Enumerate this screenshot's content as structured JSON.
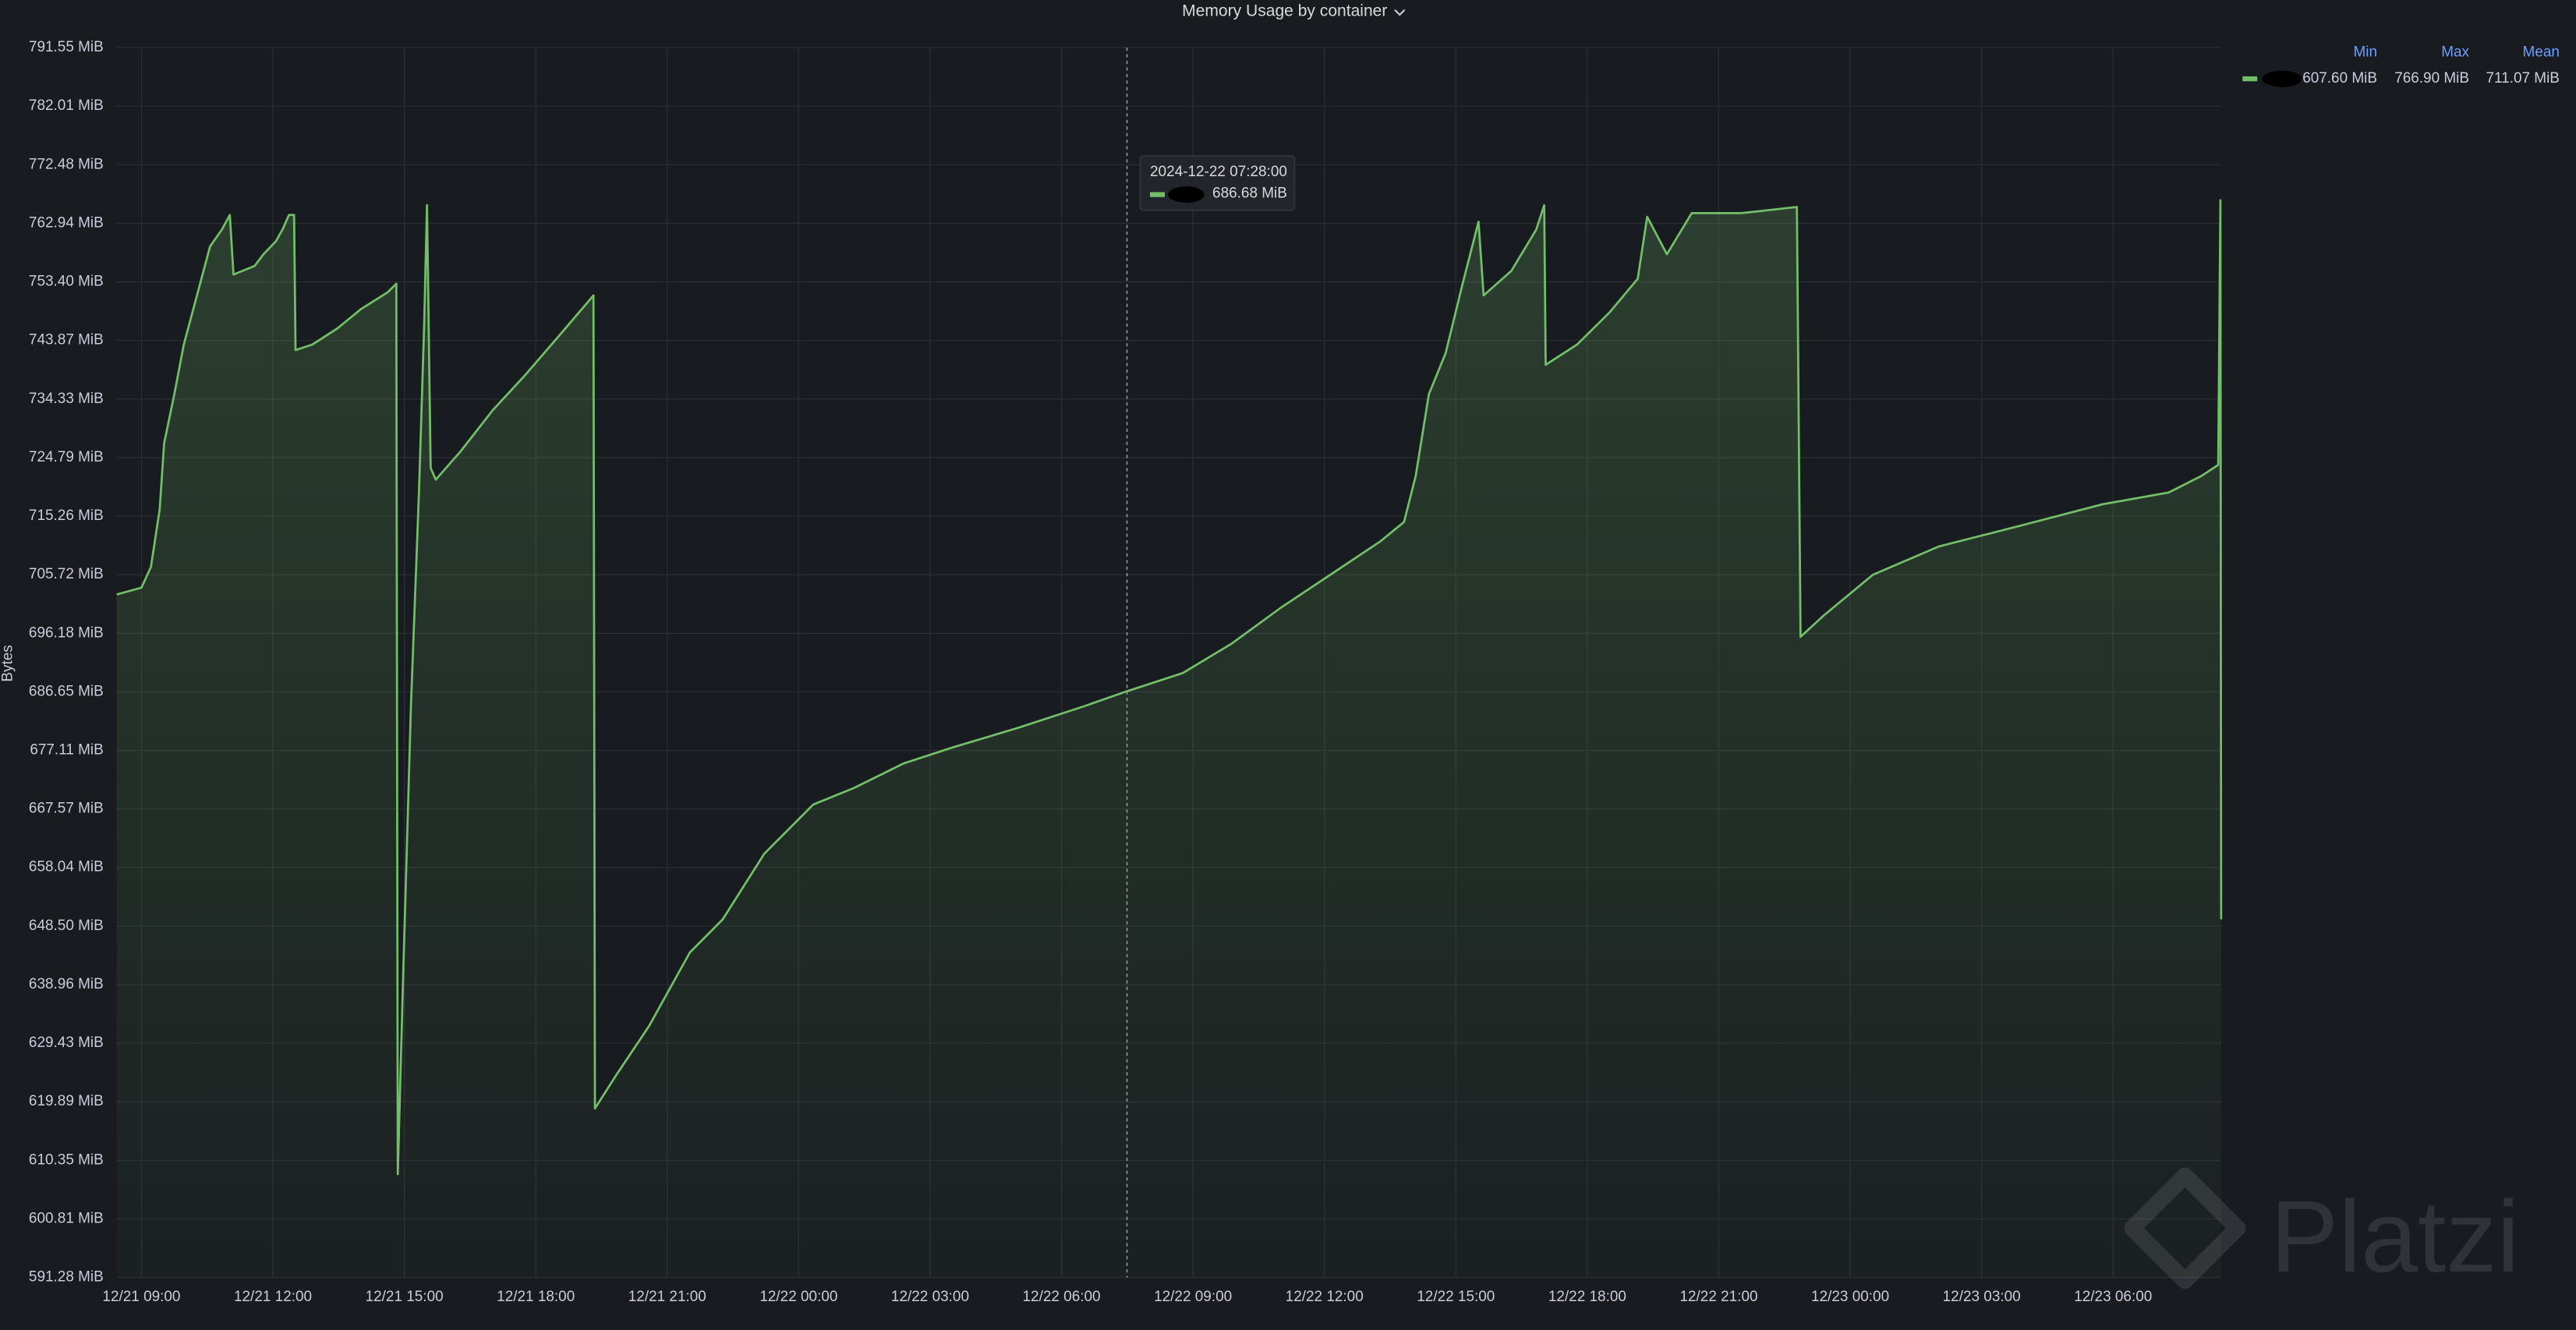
{
  "chart_data": {
    "type": "line",
    "title": "Memory Usage by container",
    "ylabel": "Bytes",
    "ylim": [
      591.28,
      791.55
    ],
    "yticks": [
      {
        "value": 591.28,
        "label": "591.28 MiB"
      },
      {
        "value": 600.81,
        "label": "600.81 MiB"
      },
      {
        "value": 610.35,
        "label": "610.35 MiB"
      },
      {
        "value": 619.89,
        "label": "619.89 MiB"
      },
      {
        "value": 629.43,
        "label": "629.43 MiB"
      },
      {
        "value": 638.96,
        "label": "638.96 MiB"
      },
      {
        "value": 648.5,
        "label": "648.50 MiB"
      },
      {
        "value": 658.04,
        "label": "658.04 MiB"
      },
      {
        "value": 667.57,
        "label": "667.57 MiB"
      },
      {
        "value": 677.11,
        "label": "677.11 MiB"
      },
      {
        "value": 686.65,
        "label": "686.65 MiB"
      },
      {
        "value": 696.18,
        "label": "696.18 MiB"
      },
      {
        "value": 705.72,
        "label": "705.72 MiB"
      },
      {
        "value": 715.26,
        "label": "715.26 MiB"
      },
      {
        "value": 724.79,
        "label": "724.79 MiB"
      },
      {
        "value": 734.33,
        "label": "734.33 MiB"
      },
      {
        "value": 743.87,
        "label": "743.87 MiB"
      },
      {
        "value": 753.4,
        "label": "753.40 MiB"
      },
      {
        "value": 762.94,
        "label": "762.94 MiB"
      },
      {
        "value": 772.48,
        "label": "772.48 MiB"
      },
      {
        "value": 782.01,
        "label": "782.01 MiB"
      },
      {
        "value": 791.55,
        "label": "791.55 MiB"
      }
    ],
    "xlim": [
      "12/21 08:26",
      "12/23 08:28"
    ],
    "xticks": [
      "12/21 09:00",
      "12/21 12:00",
      "12/21 15:00",
      "12/21 18:00",
      "12/21 21:00",
      "12/22 00:00",
      "12/22 03:00",
      "12/22 06:00",
      "12/22 09:00",
      "12/22 12:00",
      "12/22 15:00",
      "12/22 18:00",
      "12/22 21:00",
      "12/23 00:00",
      "12/23 03:00",
      "12/23 06:00"
    ],
    "grid": true,
    "series": [
      {
        "color": "#73bf69",
        "x": [
          "12/21 08:26",
          "12/21 09:00",
          "12/21 09:13",
          "12/21 09:25",
          "12/21 09:31",
          "12/21 09:45",
          "12/21 09:58",
          "12/21 10:16",
          "12/21 10:34",
          "12/21 10:50",
          "12/21 11:01",
          "12/21 11:06",
          "12/21 11:35",
          "12/21 11:47",
          "12/21 12:04",
          "12/21 12:13",
          "12/21 12:22",
          "12/21 12:29",
          "12/21 12:31",
          "12/21 12:54",
          "12/21 13:28",
          "12/21 14:01",
          "12/21 14:37",
          "12/21 14:49",
          "12/21 14:51",
          "12/21 14:58",
          "12/21 15:09",
          "12/21 15:20",
          "12/21 15:27",
          "12/21 15:31",
          "12/21 15:36",
          "12/21 15:43",
          "12/21 16:17",
          "12/21 17:01",
          "12/21 17:46",
          "12/21 18:31",
          "12/21 19:19",
          "12/21 19:21",
          "12/21 19:50",
          "12/21 20:35",
          "12/21 21:31",
          "12/21 22:16",
          "12/21 23:13",
          "12/22 00:20",
          "12/22 01:16",
          "12/22 02:24",
          "12/22 03:31",
          "12/22 05:01",
          "12/22 06:31",
          "12/22 07:28",
          "12/22 08:46",
          "12/22 09:53",
          "12/22 11:01",
          "12/22 12:08",
          "12/22 13:16",
          "12/22 13:49",
          "12/22 14:05",
          "12/22 14:23",
          "12/22 14:46",
          "12/22 15:08",
          "12/22 15:31",
          "12/22 15:38",
          "12/22 16:16",
          "12/22 16:50",
          "12/22 17:01",
          "12/22 17:03",
          "12/22 17:46",
          "12/22 18:31",
          "12/22 19:09",
          "12/22 19:22",
          "12/22 19:49",
          "12/22 20:23",
          "12/22 21:31",
          "12/22 22:47",
          "12/22 22:52",
          "12/22 23:23",
          "12/23 00:31",
          "12/23 02:01",
          "12/23 03:53",
          "12/23 05:46",
          "12/23 07:16",
          "12/23 08:01",
          "12/23 08:24",
          "12/23 08:27",
          "12/23 08:28"
        ],
        "values": [
          702.5,
          703.6,
          707.0,
          716.4,
          727.1,
          735.1,
          743.2,
          751.2,
          759.2,
          761.9,
          764.3,
          754.6,
          756.0,
          757.9,
          760.0,
          761.9,
          764.3,
          764.3,
          742.3,
          743.2,
          745.8,
          749.0,
          751.7,
          753.1,
          608.1,
          638.9,
          684.3,
          719.1,
          745.8,
          765.9,
          723.1,
          721.2,
          725.8,
          732.5,
          738.3,
          744.5,
          751.2,
          618.8,
          624.2,
          632.2,
          644.2,
          649.6,
          660.3,
          668.3,
          671.0,
          675.0,
          677.6,
          680.8,
          684.3,
          686.68,
          689.7,
          694.5,
          700.4,
          705.7,
          711.1,
          714.3,
          721.8,
          735.1,
          741.8,
          752.5,
          763.2,
          751.2,
          755.2,
          761.9,
          765.9,
          739.9,
          743.2,
          748.5,
          753.9,
          764.0,
          757.9,
          764.6,
          764.6,
          765.6,
          695.6,
          699.0,
          705.7,
          710.3,
          713.7,
          717.2,
          719.1,
          721.8,
          723.6,
          766.7,
          649.6
        ]
      }
    ],
    "legend": {
      "headers": [
        "Min",
        "Max",
        "Mean"
      ],
      "values": [
        {
          "value": 607.6,
          "label": "607.60 MiB"
        },
        {
          "value": 766.9,
          "label": "766.90 MiB"
        },
        {
          "value": 711.07,
          "label": "711.07 MiB"
        }
      ]
    },
    "tooltip": {
      "time": "2024-12-22 07:28:00",
      "value_label": "686.68 MiB"
    },
    "watermark": "Platzi"
  }
}
